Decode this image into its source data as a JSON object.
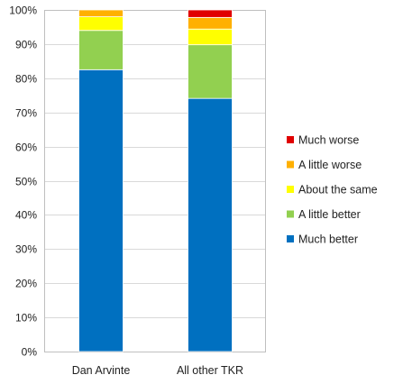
{
  "chart_data": {
    "type": "bar",
    "stacked": true,
    "percent": true,
    "title": "",
    "xlabel": "",
    "ylabel": "",
    "ylim": [
      0,
      100
    ],
    "yticks": [
      0,
      10,
      20,
      30,
      40,
      50,
      60,
      70,
      80,
      90,
      100
    ],
    "ytick_labels": [
      "0%",
      "10%",
      "20%",
      "30%",
      "40%",
      "50%",
      "60%",
      "70%",
      "80%",
      "90%",
      "100%"
    ],
    "grid": true,
    "legend_position": "right",
    "categories": [
      "Dan Arvinte",
      "All other TKR"
    ],
    "series": [
      {
        "name": "Much better",
        "color": "#0070C0",
        "values": [
          82.5,
          74.1
        ]
      },
      {
        "name": "A little better",
        "color": "#92D050",
        "values": [
          11.5,
          15.7
        ]
      },
      {
        "name": "About the same",
        "color": "#FFFF00",
        "values": [
          4.0,
          4.6
        ]
      },
      {
        "name": "A little worse",
        "color": "#FFB000",
        "values": [
          2.0,
          3.4
        ]
      },
      {
        "name": "Much worse",
        "color": "#E00000",
        "values": [
          0.0,
          2.2
        ]
      }
    ]
  }
}
